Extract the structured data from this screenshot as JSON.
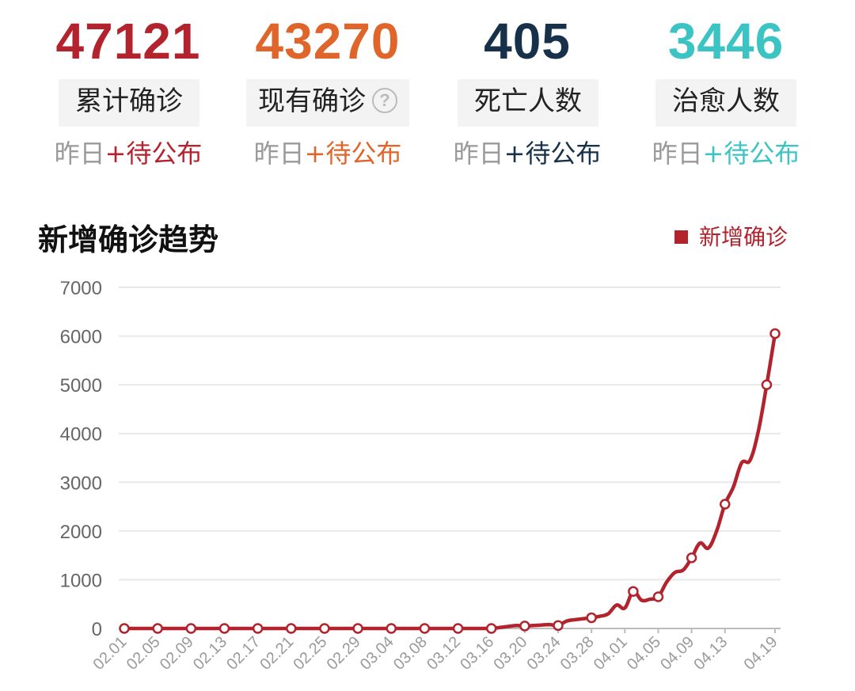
{
  "stats": [
    {
      "value": "47121",
      "label": "累计确诊",
      "delta_prefix": "昨日",
      "delta_value": "+待公布",
      "color": "#b3232d",
      "help": false
    },
    {
      "value": "43270",
      "label": "现有确诊",
      "delta_prefix": "昨日",
      "delta_value": "+待公布",
      "color": "#e0652a",
      "help": true
    },
    {
      "value": "405",
      "label": "死亡人数",
      "delta_prefix": "昨日",
      "delta_value": "+待公布",
      "color": "#17314a",
      "help": false
    },
    {
      "value": "3446",
      "label": "治愈人数",
      "delta_prefix": "昨日",
      "delta_value": "+待公布",
      "color": "#3cc4c4",
      "help": false
    }
  ],
  "help_glyph": "?",
  "chart_data": {
    "type": "line",
    "title": "新增确诊趋势",
    "legend": "新增确诊",
    "legend_position": "top-right",
    "color": "#b3232d",
    "grid": true,
    "ylim": [
      0,
      7000
    ],
    "yticks": [
      "0",
      "1000",
      "2000",
      "3000",
      "4000",
      "5000",
      "6000",
      "7000"
    ],
    "x_tick_labels": [
      "02.01",
      "02.05",
      "02.09",
      "02.13",
      "02.17",
      "02.21",
      "02.25",
      "02.29",
      "03.04",
      "03.08",
      "03.12",
      "03.16",
      "03.20",
      "03.24",
      "03.28",
      "04.01",
      "04.05",
      "04.09",
      "04.13",
      "04.19"
    ],
    "series": [
      {
        "name": "新增确诊",
        "dates": [
          "02.01",
          "02.02",
          "02.03",
          "02.04",
          "02.05",
          "02.06",
          "02.07",
          "02.08",
          "02.09",
          "02.10",
          "02.11",
          "02.12",
          "02.13",
          "02.14",
          "02.15",
          "02.16",
          "02.17",
          "02.18",
          "02.19",
          "02.20",
          "02.21",
          "02.22",
          "02.23",
          "02.24",
          "02.25",
          "02.26",
          "02.27",
          "02.28",
          "02.29",
          "03.01",
          "03.02",
          "03.03",
          "03.04",
          "03.05",
          "03.06",
          "03.07",
          "03.08",
          "03.09",
          "03.10",
          "03.11",
          "03.12",
          "03.13",
          "03.14",
          "03.15",
          "03.16",
          "03.17",
          "03.18",
          "03.19",
          "03.20",
          "03.21",
          "03.22",
          "03.23",
          "03.24",
          "03.25",
          "03.26",
          "03.27",
          "03.28",
          "03.29",
          "03.30",
          "03.31",
          "04.01",
          "04.02",
          "04.03",
          "04.04",
          "04.05",
          "04.06",
          "04.07",
          "04.08",
          "04.09",
          "04.10",
          "04.11",
          "04.12",
          "04.13",
          "04.14",
          "04.15",
          "04.16",
          "04.17",
          "04.18",
          "04.19"
        ],
        "values": [
          0,
          0,
          0,
          0,
          0,
          0,
          0,
          0,
          0,
          0,
          0,
          0,
          0,
          0,
          0,
          0,
          0,
          0,
          0,
          0,
          0,
          0,
          0,
          0,
          0,
          0,
          0,
          0,
          0,
          0,
          0,
          0,
          0,
          0,
          0,
          0,
          0,
          0,
          0,
          0,
          0,
          0,
          0,
          0,
          0,
          20,
          40,
          60,
          50,
          60,
          70,
          80,
          60,
          150,
          180,
          200,
          220,
          250,
          300,
          480,
          420,
          760,
          580,
          600,
          650,
          950,
          1150,
          1200,
          1450,
          1750,
          1650,
          2000,
          2550,
          2900,
          3400,
          3450,
          4050,
          5000,
          6050
        ],
        "marked": [
          0,
          4,
          8,
          12,
          16,
          20,
          24,
          28,
          32,
          36,
          40,
          44,
          48,
          52,
          56,
          61,
          64,
          68,
          72,
          77,
          78
        ]
      }
    ]
  }
}
